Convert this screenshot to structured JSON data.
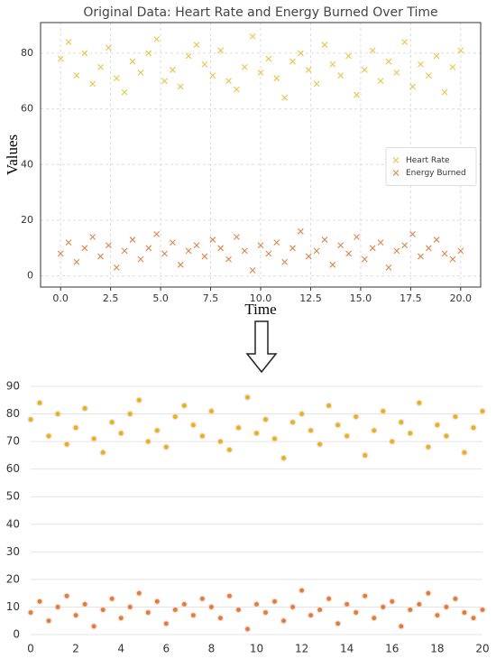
{
  "chart_data": [
    {
      "type": "scatter",
      "title": "Original Data: Heart Rate and Energy Burned Over Time",
      "x_label": "Time",
      "y_label": "Values",
      "x": [
        0,
        0.4,
        0.8,
        1.2,
        1.6,
        2,
        2.4,
        2.8,
        3.2,
        3.6,
        4,
        4.4,
        4.8,
        5.2,
        5.6,
        6,
        6.4,
        6.8,
        7.2,
        7.6,
        8,
        8.4,
        8.8,
        9.2,
        9.6,
        10,
        10.4,
        10.8,
        11.2,
        11.6,
        12,
        12.4,
        12.8,
        13.2,
        13.6,
        14,
        14.4,
        14.8,
        15.2,
        15.6,
        16,
        16.4,
        16.8,
        17.2,
        17.6,
        18,
        18.4,
        18.8,
        19.2,
        19.6,
        20
      ],
      "series": [
        {
          "name": "Heart Rate",
          "color": "#ecc34a",
          "values": [
            78,
            84,
            72,
            80,
            69,
            75,
            82,
            71,
            66,
            77,
            73,
            80,
            85,
            70,
            74,
            68,
            79,
            83,
            76,
            72,
            81,
            70,
            67,
            75,
            86,
            73,
            78,
            71,
            64,
            77,
            80,
            74,
            69,
            83,
            76,
            72,
            79,
            65,
            74,
            81,
            70,
            77,
            73,
            84,
            68,
            76,
            72,
            79,
            66,
            75,
            81
          ]
        },
        {
          "name": "Energy Burned",
          "color": "#e2834a",
          "values": [
            8,
            12,
            5,
            10,
            14,
            7,
            11,
            3,
            9,
            13,
            6,
            10,
            15,
            8,
            12,
            4,
            9,
            11,
            7,
            13,
            10,
            6,
            14,
            9,
            2,
            11,
            8,
            12,
            5,
            10,
            16,
            7,
            9,
            13,
            4,
            11,
            8,
            14,
            6,
            10,
            12,
            3,
            9,
            11,
            15,
            7,
            10,
            13,
            8,
            6,
            9
          ]
        }
      ],
      "marker": "x",
      "xlim": [
        -1,
        21
      ],
      "ylim": [
        -4,
        91
      ],
      "xticks": [
        {
          "value": 0,
          "label": "0.0"
        },
        {
          "value": 2.5,
          "label": "2.5"
        },
        {
          "value": 5,
          "label": "5.0"
        },
        {
          "value": 7.5,
          "label": "7.5"
        },
        {
          "value": 10,
          "label": "10.0"
        },
        {
          "value": 12.5,
          "label": "12.5"
        },
        {
          "value": 15,
          "label": "15.0"
        },
        {
          "value": 17.5,
          "label": "17.5"
        },
        {
          "value": 20,
          "label": "20.0"
        }
      ],
      "yticks": [
        0,
        20,
        40,
        60,
        80
      ],
      "grid": true,
      "legend": "center right"
    },
    {
      "type": "scatter",
      "x": [
        0,
        0.4,
        0.8,
        1.2,
        1.6,
        2,
        2.4,
        2.8,
        3.2,
        3.6,
        4,
        4.4,
        4.8,
        5.2,
        5.6,
        6,
        6.4,
        6.8,
        7.2,
        7.6,
        8,
        8.4,
        8.8,
        9.2,
        9.6,
        10,
        10.4,
        10.8,
        11.2,
        11.6,
        12,
        12.4,
        12.8,
        13.2,
        13.6,
        14,
        14.4,
        14.8,
        15.2,
        15.6,
        16,
        16.4,
        16.8,
        17.2,
        17.6,
        18,
        18.4,
        18.8,
        19.2,
        19.6,
        20
      ],
      "series": [
        {
          "color": "#dfb80c",
          "values": [
            78,
            84,
            72,
            80,
            69,
            75,
            82,
            71,
            66,
            77,
            73,
            80,
            85,
            70,
            74,
            68,
            79,
            83,
            76,
            72,
            81,
            70,
            67,
            75,
            86,
            73,
            78,
            71,
            64,
            77,
            80,
            74,
            69,
            83,
            76,
            72,
            79,
            65,
            74,
            81,
            70,
            77,
            73,
            84,
            68,
            76,
            72,
            79,
            66,
            75,
            81
          ]
        },
        {
          "color": "#d9822b",
          "values": [
            8,
            12,
            5,
            10,
            14,
            7,
            11,
            3,
            9,
            13,
            6,
            10,
            15,
            8,
            12,
            4,
            9,
            11,
            7,
            13,
            10,
            6,
            14,
            9,
            2,
            11,
            8,
            12,
            5,
            10,
            16,
            7,
            9,
            13,
            4,
            11,
            8,
            14,
            6,
            10,
            12,
            3,
            9,
            11,
            15,
            7,
            10,
            13,
            8,
            6,
            9
          ]
        }
      ],
      "marker": "o",
      "xlim": [
        0,
        20
      ],
      "ylim": [
        0,
        90
      ],
      "xticks": [
        0,
        2,
        4,
        6,
        8,
        10,
        12,
        14,
        16,
        18,
        20
      ],
      "yticks": [
        0,
        10,
        20,
        30,
        40,
        50,
        60,
        70,
        80,
        90
      ],
      "grid": true
    }
  ]
}
